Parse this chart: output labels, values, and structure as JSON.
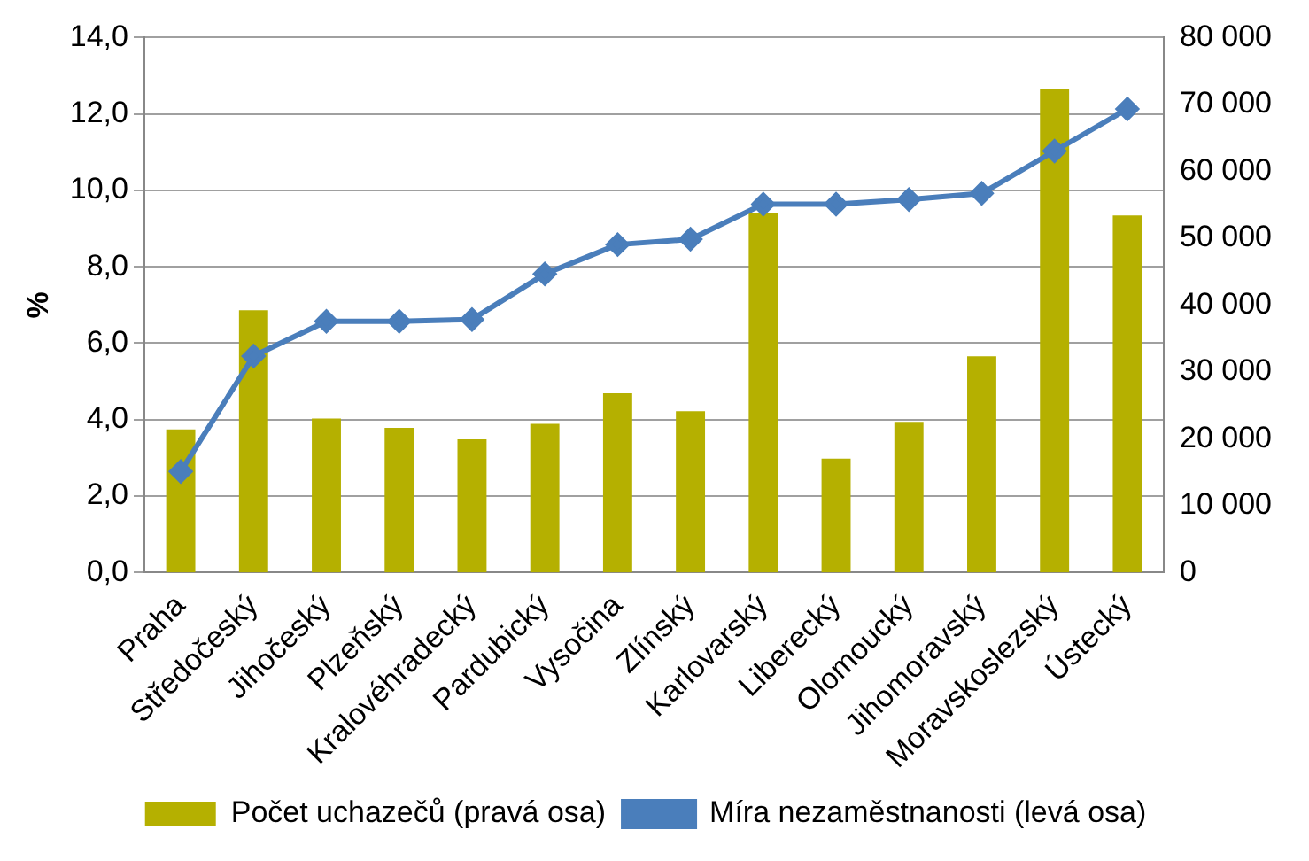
{
  "chart_data": {
    "type": "bar",
    "ylabel": "%",
    "categories": [
      "Praha",
      "Středočeský",
      "Jihočeský",
      "Plzeňský",
      "Kralovéhradecký",
      "Pardubický",
      "Vysočina",
      "Zlínský",
      "Karlovarský",
      "Liberecký",
      "Olomoucký",
      "Jihomoravský",
      "Moravskoslezský",
      "Ústecký"
    ],
    "series": [
      {
        "name": "Počet uchazečů (pravá osa)",
        "axis": "y2",
        "color": "#b5b000",
        "values": [
          21400,
          39200,
          23000,
          21600,
          19900,
          22200,
          26800,
          24100,
          53700,
          17000,
          22500,
          32300,
          72300,
          53400
        ]
      },
      {
        "name": "Míra nezaměstnanosti (levá osa)",
        "type": "line",
        "axis": "y",
        "color": "#4a7ebb",
        "marker": "diamond",
        "values": [
          2.64,
          5.66,
          6.57,
          6.57,
          6.62,
          7.81,
          8.58,
          8.72,
          9.64,
          9.64,
          9.76,
          9.92,
          11.03,
          12.13
        ]
      }
    ],
    "ylim": [
      0,
      14
    ],
    "yticks": [
      {
        "value": 0,
        "label": "0,0"
      },
      {
        "value": 2,
        "label": "2,0"
      },
      {
        "value": 4,
        "label": "4,0"
      },
      {
        "value": 6,
        "label": "6,0"
      },
      {
        "value": 8,
        "label": "8,0"
      },
      {
        "value": 10,
        "label": "10,0"
      },
      {
        "value": 12,
        "label": "12,0"
      },
      {
        "value": 14,
        "label": "14,0"
      }
    ],
    "y2lim": [
      0,
      80000
    ],
    "y2ticks": [
      {
        "value": 0,
        "label": "0"
      },
      {
        "value": 10000,
        "label": "10 000"
      },
      {
        "value": 20000,
        "label": "20 000"
      },
      {
        "value": 30000,
        "label": "30 000"
      },
      {
        "value": 40000,
        "label": "40 000"
      },
      {
        "value": 50000,
        "label": "50 000"
      },
      {
        "value": 60000,
        "label": "60 000"
      },
      {
        "value": 70000,
        "label": "70 000"
      },
      {
        "value": 80000,
        "label": "80 000"
      }
    ],
    "grid": "y",
    "legend": "bottom"
  }
}
